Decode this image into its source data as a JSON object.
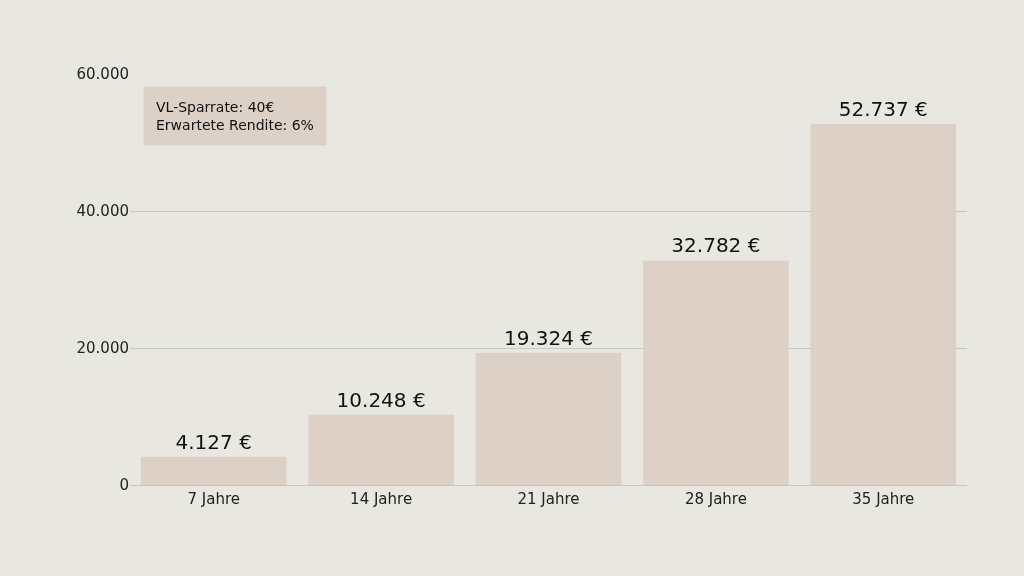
{
  "chart_data": {
    "type": "bar",
    "categories": [
      "7 Jahre",
      "14 Jahre",
      "21 Jahre",
      "28 Jahre",
      "35 Jahre"
    ],
    "values": [
      4127,
      10248,
      19324,
      32782,
      52737
    ],
    "value_labels": [
      "4.127 €",
      "10.248 €",
      "19.324 €",
      "32.782 €",
      "52.737 €"
    ],
    "color": "#ddd1c7",
    "ylim": [
      0,
      60000
    ],
    "yticks": [
      {
        "value": 0,
        "label": "0"
      },
      {
        "value": 20000,
        "label": "20.000"
      },
      {
        "value": 40000,
        "label": "40.000"
      },
      {
        "value": 60000,
        "label": "60.000"
      }
    ],
    "grid": "y",
    "annotations": [
      "VL-Sparrate: 40€\nErwartete Rendite: 6%"
    ]
  }
}
